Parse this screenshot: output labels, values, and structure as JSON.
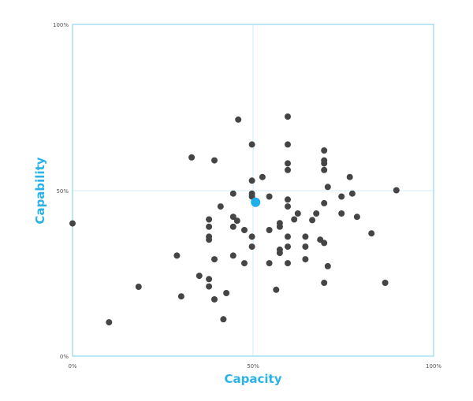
{
  "chart_data": {
    "type": "scatter",
    "title": "",
    "xlabel": "Capacity",
    "ylabel": "Capability",
    "xlim": [
      0,
      100
    ],
    "ylim": [
      0,
      100
    ],
    "x_ticks": [
      "0%",
      "50%",
      "100%"
    ],
    "y_ticks": [
      "0%",
      "50%",
      "100%"
    ],
    "grid": "quadrant midlines at 50%",
    "legend": "none",
    "colors": {
      "frame": "#a6e1f4",
      "midline": "#cdeefa",
      "point": "#454545",
      "highlight": "#1fb0ea",
      "axis_title": "#2bb3e8"
    },
    "highlight_point": {
      "x": 50.7,
      "y": 46.4
    },
    "points": [
      [
        0,
        40.0
      ],
      [
        10.1,
        10.2
      ],
      [
        18.3,
        20.9
      ],
      [
        28.9,
        30.3
      ],
      [
        30.1,
        18.0
      ],
      [
        33.0,
        59.9
      ],
      [
        35.1,
        24.2
      ],
      [
        37.8,
        41.2
      ],
      [
        37.8,
        39.0
      ],
      [
        37.8,
        36.0
      ],
      [
        37.8,
        35.1
      ],
      [
        37.8,
        23.2
      ],
      [
        37.8,
        21.0
      ],
      [
        39.3,
        17.1
      ],
      [
        39.3,
        29.2
      ],
      [
        39.3,
        59.0
      ],
      [
        41.0,
        45.1
      ],
      [
        41.8,
        11.1
      ],
      [
        42.6,
        19.0
      ],
      [
        44.5,
        30.3
      ],
      [
        44.5,
        39.0
      ],
      [
        44.5,
        49.0
      ],
      [
        44.5,
        42.0
      ],
      [
        45.6,
        40.8
      ],
      [
        45.9,
        71.3
      ],
      [
        47.6,
        38.0
      ],
      [
        47.6,
        28.0
      ],
      [
        49.7,
        36.0
      ],
      [
        49.7,
        63.8
      ],
      [
        49.7,
        52.9
      ],
      [
        49.7,
        49.0
      ],
      [
        49.7,
        48.1
      ],
      [
        49.7,
        33.0
      ],
      [
        52.6,
        54.0
      ],
      [
        54.5,
        48.1
      ],
      [
        54.5,
        38.0
      ],
      [
        54.5,
        28.0
      ],
      [
        56.4,
        20.0
      ],
      [
        57.4,
        40.1
      ],
      [
        57.4,
        39.0
      ],
      [
        57.4,
        32.1
      ],
      [
        57.4,
        31.1
      ],
      [
        59.6,
        72.2
      ],
      [
        59.6,
        63.8
      ],
      [
        59.6,
        58.1
      ],
      [
        59.6,
        56.1
      ],
      [
        59.6,
        47.2
      ],
      [
        59.6,
        45.1
      ],
      [
        59.6,
        36.0
      ],
      [
        59.6,
        33.0
      ],
      [
        59.6,
        28.0
      ],
      [
        61.4,
        41.2
      ],
      [
        62.4,
        43.0
      ],
      [
        64.5,
        36.0
      ],
      [
        64.5,
        33.0
      ],
      [
        64.5,
        29.2
      ],
      [
        66.4,
        41.0
      ],
      [
        67.5,
        43.0
      ],
      [
        68.6,
        35.1
      ],
      [
        69.7,
        62.0
      ],
      [
        69.7,
        59.0
      ],
      [
        69.7,
        58.1
      ],
      [
        69.7,
        56.1
      ],
      [
        69.7,
        46.1
      ],
      [
        69.7,
        34.1
      ],
      [
        69.7,
        22.1
      ],
      [
        70.7,
        51.0
      ],
      [
        70.7,
        27.1
      ],
      [
        74.5,
        48.1
      ],
      [
        74.5,
        43.0
      ],
      [
        76.8,
        54.0
      ],
      [
        77.5,
        49.0
      ],
      [
        78.8,
        42.0
      ],
      [
        82.8,
        37.0
      ],
      [
        86.6,
        22.1
      ],
      [
        89.7,
        50.0
      ]
    ]
  }
}
